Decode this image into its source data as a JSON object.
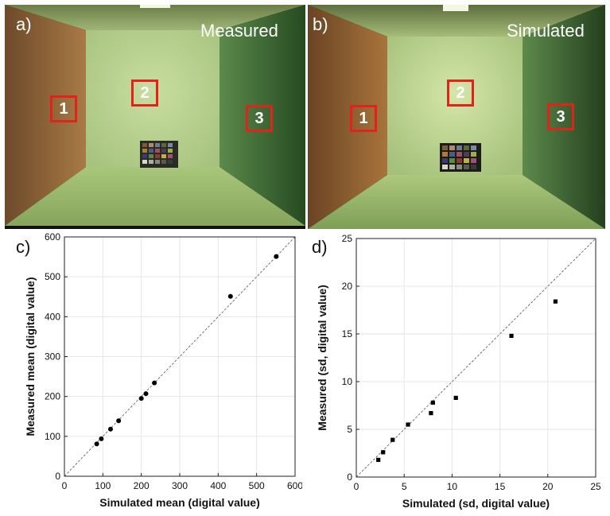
{
  "photos": [
    {
      "letter": "a)",
      "title": "Measured",
      "rois": [
        "1",
        "2",
        "3"
      ]
    },
    {
      "letter": "b)",
      "title": "Simulated",
      "rois": [
        "1",
        "2",
        "3"
      ]
    }
  ],
  "colors": {
    "roi": "#e2231a",
    "marker": "#000000",
    "grid": "#e6e6e6",
    "identity": "#555555"
  },
  "chart_data": [
    {
      "letter": "c)",
      "type": "scatter",
      "xlabel": "Simulated mean (digital value)",
      "ylabel": "Measured mean (digital value)",
      "xlim": [
        0,
        600
      ],
      "ylim": [
        0,
        600
      ],
      "xticks": [
        0,
        100,
        200,
        300,
        400,
        500,
        600
      ],
      "yticks": [
        0,
        100,
        200,
        300,
        400,
        500,
        600
      ],
      "grid": true,
      "identity_line": true,
      "marker": "circle",
      "points": [
        [
          84,
          81
        ],
        [
          96,
          94
        ],
        [
          120,
          118
        ],
        [
          141,
          139
        ],
        [
          200,
          195
        ],
        [
          212,
          207
        ],
        [
          234,
          234
        ],
        [
          432,
          451
        ],
        [
          551,
          551
        ]
      ]
    },
    {
      "letter": "d)",
      "type": "scatter",
      "xlabel": "Simulated (sd, digital value)",
      "ylabel": "Measured (sd, digital value)",
      "xlim": [
        0,
        25
      ],
      "ylim": [
        0,
        25
      ],
      "xticks": [
        0,
        5,
        10,
        15,
        20,
        25
      ],
      "yticks": [
        0,
        5,
        10,
        15,
        20,
        25
      ],
      "grid": true,
      "identity_line": true,
      "marker": "square",
      "points": [
        [
          2.3,
          1.8
        ],
        [
          2.8,
          2.6
        ],
        [
          3.8,
          3.9
        ],
        [
          5.4,
          5.5
        ],
        [
          7.8,
          6.7
        ],
        [
          8.0,
          7.8
        ],
        [
          10.4,
          8.3
        ],
        [
          16.2,
          14.8
        ],
        [
          20.8,
          18.4
        ]
      ]
    }
  ]
}
